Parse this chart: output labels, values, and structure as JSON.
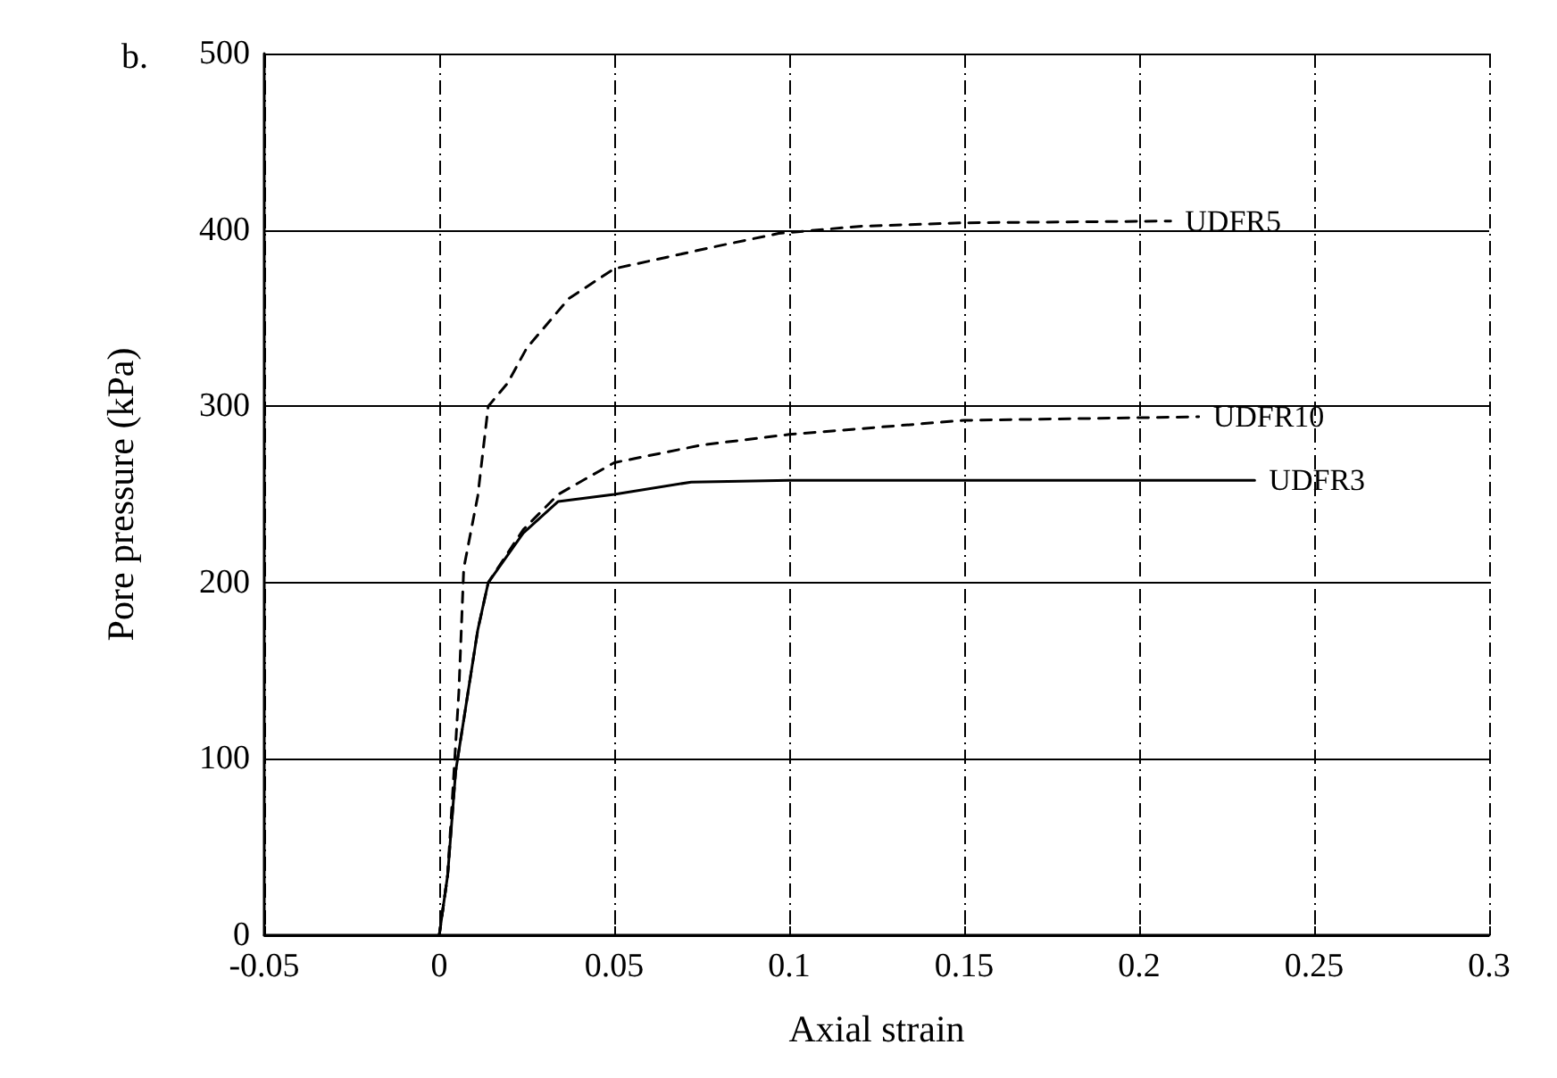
{
  "chart_data": {
    "type": "line",
    "xlabel": "Axial strain",
    "ylabel": "Pore pressure (kPa)",
    "annotations": [
      "b."
    ],
    "xlim": [
      -0.05,
      0.3
    ],
    "xticks": [
      -0.05,
      0,
      0.05,
      0.1,
      0.15,
      0.2,
      0.25,
      0.3
    ],
    "ylim": [
      0,
      500
    ],
    "yticks": [
      0,
      100,
      200,
      300,
      400,
      500
    ],
    "grid": true,
    "legend": false,
    "marker": "none",
    "series": [
      {
        "name": "UDFR5",
        "color": "#000000",
        "line_style": "dashed",
        "x": [
          0,
          0.0024,
          0.0056,
          0.007,
          0.011,
          0.014,
          0.0195,
          0.025,
          0.037,
          0.05,
          0.08,
          0.097,
          0.12,
          0.15,
          0.209
        ],
        "values": [
          0,
          34,
          138,
          208,
          249,
          300,
          313,
          333,
          361,
          378,
          391,
          398,
          402,
          404,
          405
        ]
      },
      {
        "name": "UDFR10",
        "color": "#000000",
        "line_style": "dashed",
        "x": [
          0,
          0.0024,
          0.0047,
          0.011,
          0.014,
          0.024,
          0.034,
          0.05,
          0.075,
          0.1,
          0.15,
          0.217
        ],
        "values": [
          0,
          34,
          93,
          173,
          200,
          230,
          250,
          268,
          278,
          284,
          292,
          294
        ]
      },
      {
        "name": "UDFR3",
        "color": "#000000",
        "line_style": "solid",
        "x": [
          0,
          0.0024,
          0.0047,
          0.011,
          0.014,
          0.024,
          0.034,
          0.05,
          0.072,
          0.1,
          0.15,
          0.233
        ],
        "values": [
          0,
          34,
          93,
          173,
          200,
          228,
          246,
          250,
          257,
          258,
          258,
          258
        ]
      }
    ]
  }
}
